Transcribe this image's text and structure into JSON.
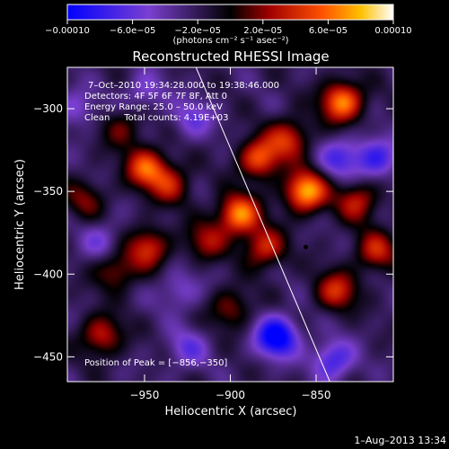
{
  "chart_data": {
    "type": "heatmap",
    "title": "Reconstructed RHESSI Image",
    "xlabel": "Heliocentric X (arcsec)",
    "ylabel": "Heliocentric Y (arcsec)",
    "xlim": [
      -995,
      -805
    ],
    "ylim": [
      -465,
      -275
    ],
    "x_ticks": [
      -950,
      -900,
      -850
    ],
    "x_tick_labels": [
      "−950",
      "−900",
      "−850"
    ],
    "y_ticks": [
      -300,
      -350,
      -400,
      -450
    ],
    "y_tick_labels": [
      "−300",
      "−350",
      "−400",
      "−450"
    ],
    "colorbar": {
      "min": -0.0001,
      "max": 0.0001,
      "ticks": [
        -0.0001,
        -6e-05,
        -2e-05,
        2e-05,
        6e-05,
        0.0001
      ],
      "tick_labels": [
        "−0.00010",
        "−6.0e−05",
        "−2.0e−05",
        "2.0e−05",
        "6.0e−05",
        "0.00010"
      ],
      "units_label": "(photons cm⁻² s⁻¹ asec⁻²)"
    },
    "info_lines": [
      "7–Oct–2010 19:34:28.000 to 19:38:46.000",
      "Detectors: 4F 5F 6F 7F 8F, Att 0",
      "Energy Range: 25.0 – 50.0 keV",
      "Clean     Total counts: 4.19E+03"
    ],
    "peak_label": "Position of Peak = [−856,−350]",
    "peak": [
      -856,
      -350
    ],
    "limb_line": [
      [
        -920,
        -275
      ],
      [
        -842,
        -465
      ]
    ],
    "sources": [
      {
        "x": -835,
        "y": -296,
        "v": 0.9
      },
      {
        "x": -856,
        "y": -350,
        "v": 1.0
      },
      {
        "x": -883,
        "y": -330,
        "v": 0.75
      },
      {
        "x": -866,
        "y": -318,
        "v": 0.6
      },
      {
        "x": -949,
        "y": -336,
        "v": 0.75
      },
      {
        "x": -935,
        "y": -346,
        "v": 0.5
      },
      {
        "x": -895,
        "y": -364,
        "v": 0.9
      },
      {
        "x": -880,
        "y": -384,
        "v": 0.6
      },
      {
        "x": -948,
        "y": -384,
        "v": 0.6
      },
      {
        "x": -967,
        "y": -398,
        "v": 0.45
      },
      {
        "x": -914,
        "y": -380,
        "v": 0.45
      },
      {
        "x": -826,
        "y": -356,
        "v": 0.55
      },
      {
        "x": -815,
        "y": -386,
        "v": 0.55
      },
      {
        "x": -838,
        "y": -410,
        "v": 0.6
      },
      {
        "x": -975,
        "y": -437,
        "v": 0.55
      },
      {
        "x": -900,
        "y": -421,
        "v": 0.4
      },
      {
        "x": -963,
        "y": -312,
        "v": 0.35
      },
      {
        "x": -985,
        "y": -355,
        "v": 0.35
      },
      {
        "x": -922,
        "y": -306,
        "v": -0.35
      },
      {
        "x": -950,
        "y": -290,
        "v": -0.3
      },
      {
        "x": -873,
        "y": -438,
        "v": -0.9
      },
      {
        "x": -840,
        "y": -452,
        "v": -0.55
      },
      {
        "x": -836,
        "y": -330,
        "v": -0.45
      },
      {
        "x": -815,
        "y": -330,
        "v": -0.55
      },
      {
        "x": -975,
        "y": -380,
        "v": -0.3
      },
      {
        "x": -925,
        "y": -445,
        "v": -0.35
      },
      {
        "x": -990,
        "y": -300,
        "v": -0.3
      },
      {
        "x": -930,
        "y": -410,
        "v": -0.3
      }
    ]
  },
  "footer": {
    "timestamp": "1–Aug–2013 13:34"
  }
}
